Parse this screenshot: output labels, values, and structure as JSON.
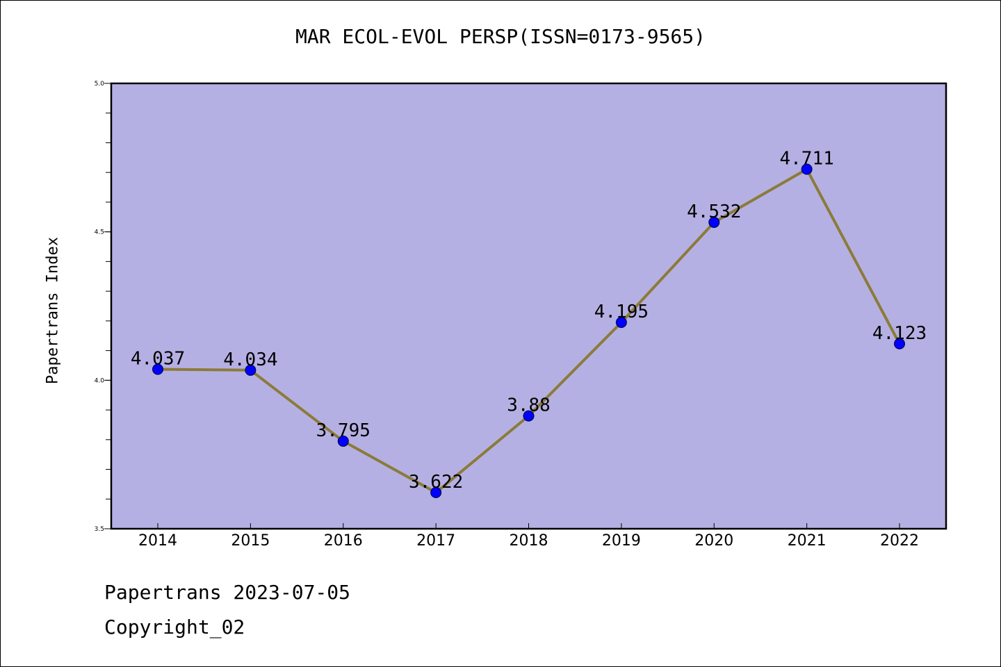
{
  "header": {
    "title": "MAR ECOL-EVOL PERSP(ISSN=0173-9565)"
  },
  "footer": {
    "date_line": "Papertrans 2023-07-05",
    "copyright": "Copyright_02"
  },
  "chart_data": {
    "type": "line",
    "title": "MAR ECOL-EVOL PERSP(ISSN=0173-9565)",
    "xlabel": "",
    "ylabel": "Papertrans Index",
    "categories": [
      "2014",
      "2015",
      "2016",
      "2017",
      "2018",
      "2019",
      "2020",
      "2021",
      "2022"
    ],
    "series": [
      {
        "values": [
          4.037,
          4.034,
          3.795,
          3.622,
          3.88,
          4.195,
          4.532,
          4.711,
          4.123
        ],
        "labels": [
          "4.037",
          "4.034",
          "3.795",
          "3.622",
          "3.88",
          "4.195",
          "4.532",
          "4.711",
          "4.123"
        ]
      }
    ],
    "ylim": [
      3.5,
      5.0
    ],
    "yticks": [
      "3.5",
      "4.0",
      "4.5",
      "5.0"
    ],
    "grid": false,
    "colors": {
      "plot_background": "#b5b0e3",
      "line": "#8b7b3a",
      "marker": "#0000ff"
    }
  }
}
